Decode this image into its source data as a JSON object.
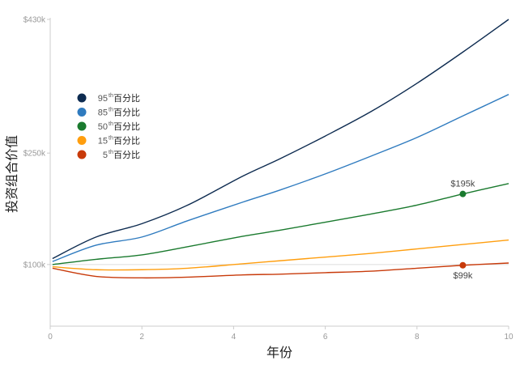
{
  "chart_data": {
    "type": "line",
    "title": "",
    "xlabel": "年份",
    "ylabel": "投资组合价值",
    "xlim": [
      0,
      10
    ],
    "ylim": [
      17,
      430
    ],
    "xticks": [
      0,
      2,
      4,
      6,
      8,
      10
    ],
    "xtick_labels": [
      "0",
      "2",
      "4",
      "6",
      "8",
      "10"
    ],
    "yticks": [
      100,
      250,
      430
    ],
    "ytick_labels": [
      "$100k",
      "$250k",
      "$430k"
    ],
    "reference_line": 100,
    "legend_placement": "top-left",
    "x": [
      0.05,
      1,
      2,
      3,
      4.2,
      5,
      6,
      7,
      8,
      9,
      10
    ],
    "series": [
      {
        "name": "95",
        "sup": "th",
        "suffix": "百分比",
        "color": "#0d2b50",
        "values": [
          108,
          137,
          155,
          180,
          219,
          242,
          273,
          306,
          344,
          386,
          430
        ]
      },
      {
        "name": "85",
        "sup": "th",
        "suffix": "百分比",
        "color": "#2f7bbf",
        "values": [
          104,
          126,
          137,
          159,
          184,
          200,
          222,
          246,
          271,
          300,
          329
        ]
      },
      {
        "name": "50",
        "sup": "th",
        "suffix": "百分比",
        "color": "#1a7a2e",
        "values": [
          100,
          107,
          113,
          124,
          138,
          146,
          157,
          168,
          180,
          195,
          209
        ]
      },
      {
        "name": "15",
        "sup": "th",
        "suffix": "百分比",
        "color": "#ff9e0e",
        "values": [
          97,
          93,
          93,
          95,
          101,
          105,
          110,
          115,
          121,
          127,
          133
        ]
      },
      {
        "name": "5",
        "sup": "th",
        "suffix": "百分比",
        "color": "#c83a0a",
        "values": [
          95,
          84,
          82,
          83,
          86,
          87,
          89,
          91,
          95,
          99,
          102
        ]
      }
    ],
    "annotations": [
      {
        "series": "50",
        "x": 9,
        "y": 195,
        "text": "$195k",
        "position": "above"
      },
      {
        "series": "5",
        "x": 9,
        "y": 99,
        "text": "$99k",
        "position": "below"
      }
    ]
  }
}
